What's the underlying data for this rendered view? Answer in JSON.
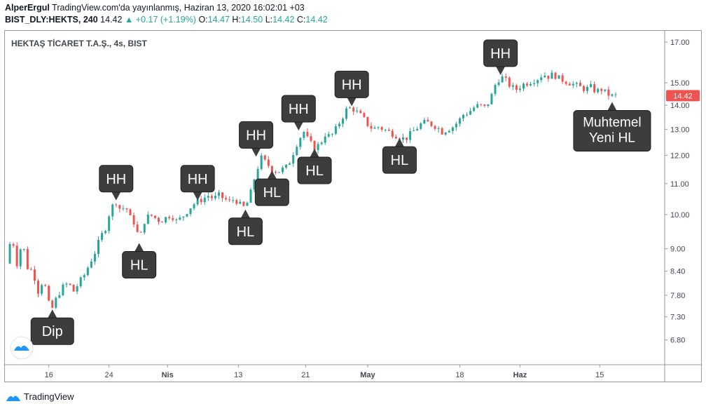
{
  "header": {
    "author": "AlperErgul",
    "published": "TradingView.com'da yayınlanmış, Haziran 13, 2020 16:02:01 +03",
    "symbol": "BIST_DLY:HEKTS, 240",
    "last": "14.42",
    "change": "+0.17 (+1.19%)",
    "open_label": "O:",
    "open": "14.47",
    "high_label": "H:",
    "high": "14.50",
    "low_label": "L:",
    "low": "14.42",
    "close_label": "C:",
    "close": "14.42"
  },
  "footer": {
    "brand": "TradingView"
  },
  "colors": {
    "up": "#26a69a",
    "down": "#ef5350",
    "label_bg": "#3d3d3d",
    "price_tag": "#ef5350"
  },
  "chart_data": {
    "type": "candlestick",
    "title": "HEKTAŞ TİCARET T.A.Ş., 4s, BIST",
    "y_scale": "log",
    "ylim": [
      6.3,
      17.6
    ],
    "y_ticks": [
      "17.00",
      "15.00",
      "14.00",
      "13.00",
      "12.00",
      "11.00",
      "10.00",
      "9.00",
      "8.40",
      "7.80",
      "7.30",
      "6.80"
    ],
    "y_tick_values": [
      17,
      15,
      14,
      13,
      12,
      11,
      10,
      9,
      8.4,
      7.8,
      7.3,
      6.8
    ],
    "x_ticks": [
      "16",
      "24",
      "Nis",
      "13",
      "21",
      "May",
      "18",
      "Haz",
      "15"
    ],
    "last_price": "14.42",
    "close_path": [
      [
        0,
        8.6
      ],
      [
        6,
        9.4
      ],
      [
        12,
        8.6
      ],
      [
        18,
        9.2
      ],
      [
        24,
        8.5
      ],
      [
        30,
        8.4
      ],
      [
        36,
        7.9
      ],
      [
        42,
        8.2
      ],
      [
        48,
        7.6
      ],
      [
        52,
        7.5
      ],
      [
        58,
        7.8
      ],
      [
        64,
        8.0
      ],
      [
        70,
        8.1
      ],
      [
        76,
        7.9
      ],
      [
        82,
        8.1
      ],
      [
        88,
        8.3
      ],
      [
        94,
        8.6
      ],
      [
        100,
        8.9
      ],
      [
        106,
        9.3
      ],
      [
        112,
        9.6
      ],
      [
        118,
        10.2
      ],
      [
        124,
        10.4
      ],
      [
        130,
        10.1
      ],
      [
        134,
        10.3
      ],
      [
        140,
        9.9
      ],
      [
        146,
        9.7
      ],
      [
        150,
        9.2
      ],
      [
        156,
        9.8
      ],
      [
        162,
        10.0
      ],
      [
        168,
        9.9
      ],
      [
        174,
        9.8
      ],
      [
        180,
        9.9
      ],
      [
        186,
        10.0
      ],
      [
        192,
        9.8
      ],
      [
        198,
        9.9
      ],
      [
        204,
        10.1
      ],
      [
        210,
        10.3
      ],
      [
        216,
        10.4
      ],
      [
        222,
        10.5
      ],
      [
        228,
        10.6
      ],
      [
        234,
        10.5
      ],
      [
        240,
        10.6
      ],
      [
        246,
        10.5
      ],
      [
        252,
        10.4
      ],
      [
        258,
        10.5
      ],
      [
        264,
        10.3
      ],
      [
        270,
        10.2
      ],
      [
        276,
        10.7
      ],
      [
        282,
        11.4
      ],
      [
        288,
        11.9
      ],
      [
        294,
        11.7
      ],
      [
        300,
        11.5
      ],
      [
        306,
        11.4
      ],
      [
        312,
        11.5
      ],
      [
        318,
        11.6
      ],
      [
        324,
        12.1
      ],
      [
        330,
        12.6
      ],
      [
        336,
        12.9
      ],
      [
        342,
        12.5
      ],
      [
        348,
        12.3
      ],
      [
        354,
        12.4
      ],
      [
        360,
        12.8
      ],
      [
        366,
        12.7
      ],
      [
        372,
        13.0
      ],
      [
        378,
        13.4
      ],
      [
        384,
        13.8
      ],
      [
        390,
        13.9
      ],
      [
        396,
        13.7
      ],
      [
        402,
        13.5
      ],
      [
        408,
        13.2
      ],
      [
        414,
        13.0
      ],
      [
        420,
        13.1
      ],
      [
        426,
        13.0
      ],
      [
        432,
        12.9
      ],
      [
        438,
        12.8
      ],
      [
        444,
        12.7
      ],
      [
        450,
        12.6
      ],
      [
        456,
        12.8
      ],
      [
        462,
        13.0
      ],
      [
        468,
        13.2
      ],
      [
        474,
        13.3
      ],
      [
        480,
        13.2
      ],
      [
        486,
        13.1
      ],
      [
        492,
        12.9
      ],
      [
        498,
        13.0
      ],
      [
        504,
        13.1
      ],
      [
        510,
        13.3
      ],
      [
        516,
        13.6
      ],
      [
        522,
        13.7
      ],
      [
        528,
        13.9
      ],
      [
        534,
        14.0
      ],
      [
        540,
        13.9
      ],
      [
        546,
        14.2
      ],
      [
        552,
        14.9
      ],
      [
        558,
        15.3
      ],
      [
        564,
        15.1
      ],
      [
        570,
        14.8
      ],
      [
        576,
        14.7
      ],
      [
        582,
        14.9
      ],
      [
        588,
        15.0
      ],
      [
        594,
        15.1
      ],
      [
        600,
        15.2
      ],
      [
        606,
        15.4
      ],
      [
        612,
        15.3
      ],
      [
        618,
        15.4
      ],
      [
        624,
        15.2
      ],
      [
        630,
        15.1
      ],
      [
        636,
        15.0
      ],
      [
        642,
        14.9
      ],
      [
        648,
        14.8
      ],
      [
        654,
        14.7
      ],
      [
        660,
        14.8
      ],
      [
        666,
        14.6
      ],
      [
        672,
        14.7
      ],
      [
        678,
        14.5
      ],
      [
        684,
        14.4
      ],
      [
        688,
        14.42
      ]
    ],
    "annotations": [
      {
        "text": "Dip",
        "bar": 52,
        "price": 7.5,
        "side": "below"
      },
      {
        "text": "HH",
        "bar": 124,
        "price": 10.4,
        "side": "above"
      },
      {
        "text": "HL",
        "bar": 150,
        "price": 9.2,
        "side": "below"
      },
      {
        "text": "HH",
        "bar": 216,
        "price": 10.4,
        "side": "above"
      },
      {
        "text": "HL",
        "bar": 270,
        "price": 10.2,
        "side": "below"
      },
      {
        "text": "HH",
        "bar": 282,
        "price": 11.9,
        "side": "above"
      },
      {
        "text": "HL",
        "bar": 300,
        "price": 11.5,
        "side": "below"
      },
      {
        "text": "HH",
        "bar": 330,
        "price": 12.9,
        "side": "above"
      },
      {
        "text": "HL",
        "bar": 348,
        "price": 12.3,
        "side": "below"
      },
      {
        "text": "HH",
        "bar": 390,
        "price": 13.9,
        "side": "above"
      },
      {
        "text": "HL",
        "bar": 444,
        "price": 12.7,
        "side": "below"
      },
      {
        "text": "HH",
        "bar": 558,
        "price": 15.3,
        "side": "above"
      },
      {
        "text": "Muhtemel Yeni HL",
        "bar": 684,
        "price": 14.2,
        "side": "below"
      }
    ]
  }
}
